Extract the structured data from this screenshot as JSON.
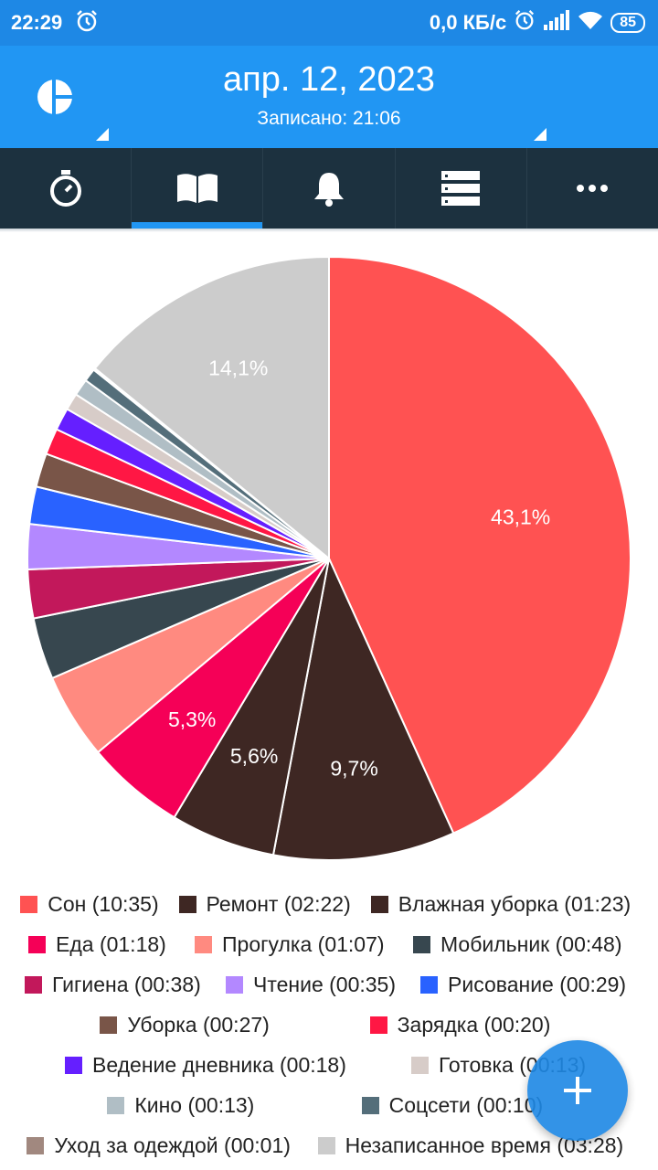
{
  "status_bar": {
    "time": "22:29",
    "net_speed": "0,0 КБ/с",
    "battery": "85"
  },
  "header": {
    "date": "апр. 12, 2023",
    "recorded": "Записано: 21:06"
  },
  "tabs": [
    {
      "icon": "stopwatch-icon",
      "active": false
    },
    {
      "icon": "book-icon",
      "active": true
    },
    {
      "icon": "bell-icon",
      "active": false
    },
    {
      "icon": "list-icon",
      "active": false
    },
    {
      "icon": "more-icon",
      "active": false
    }
  ],
  "chart_data": {
    "type": "pie",
    "slices": [
      {
        "name": "Сон (10:35)",
        "value": 43.1,
        "color": "#ff5252",
        "label": "43,1%"
      },
      {
        "name": "Ремонт  (02:22)",
        "value": 9.7,
        "color": "#3e2723",
        "label": "9,7%"
      },
      {
        "name": "Влажная уборка  (01:23)",
        "value": 5.6,
        "color": "#3e2723",
        "label": "5,6%"
      },
      {
        "name": "Еда (01:18)",
        "value": 5.3,
        "color": "#f50057",
        "label": "5,3%"
      },
      {
        "name": "Прогулка (01:07)",
        "value": 4.6,
        "color": "#ff8a80",
        "label": ""
      },
      {
        "name": "Мобильник  (00:48)",
        "value": 3.3,
        "color": "#37474f",
        "label": ""
      },
      {
        "name": "Гигиена  (00:38)",
        "value": 2.6,
        "color": "#c2185b",
        "label": ""
      },
      {
        "name": "Чтение (00:35)",
        "value": 2.4,
        "color": "#b388ff",
        "label": ""
      },
      {
        "name": "Рисование  (00:29)",
        "value": 2.0,
        "color": "#2962ff",
        "label": ""
      },
      {
        "name": "Уборка (00:27)",
        "value": 1.8,
        "color": "#795548",
        "label": ""
      },
      {
        "name": "Зарядка  (00:20)",
        "value": 1.4,
        "color": "#ff1744",
        "label": ""
      },
      {
        "name": "Ведение дневника  (00:18)",
        "value": 1.2,
        "color": "#651fff",
        "label": ""
      },
      {
        "name": "Готовка (00:13)",
        "value": 0.9,
        "color": "#d7ccc8",
        "label": ""
      },
      {
        "name": "Кино (00:13)",
        "value": 0.9,
        "color": "#b0bec5",
        "label": ""
      },
      {
        "name": "Соцсети (00:10)",
        "value": 0.7,
        "color": "#546e7a",
        "label": ""
      },
      {
        "name": "Уход за одеждой  (00:01)",
        "value": 0.1,
        "color": "#a1887f",
        "label": ""
      },
      {
        "name": "Незаписанное время (03:28)",
        "value": 14.1,
        "color": "#cccccc",
        "label": "14,1%"
      }
    ]
  },
  "legend_rows": [
    [
      0,
      1,
      2
    ],
    [
      3,
      4,
      5
    ],
    [
      6,
      7,
      8
    ],
    [
      9,
      10
    ],
    [
      11,
      12
    ],
    [
      13,
      14
    ],
    [
      15,
      16
    ]
  ],
  "fab": {
    "icon": "plus-icon"
  }
}
